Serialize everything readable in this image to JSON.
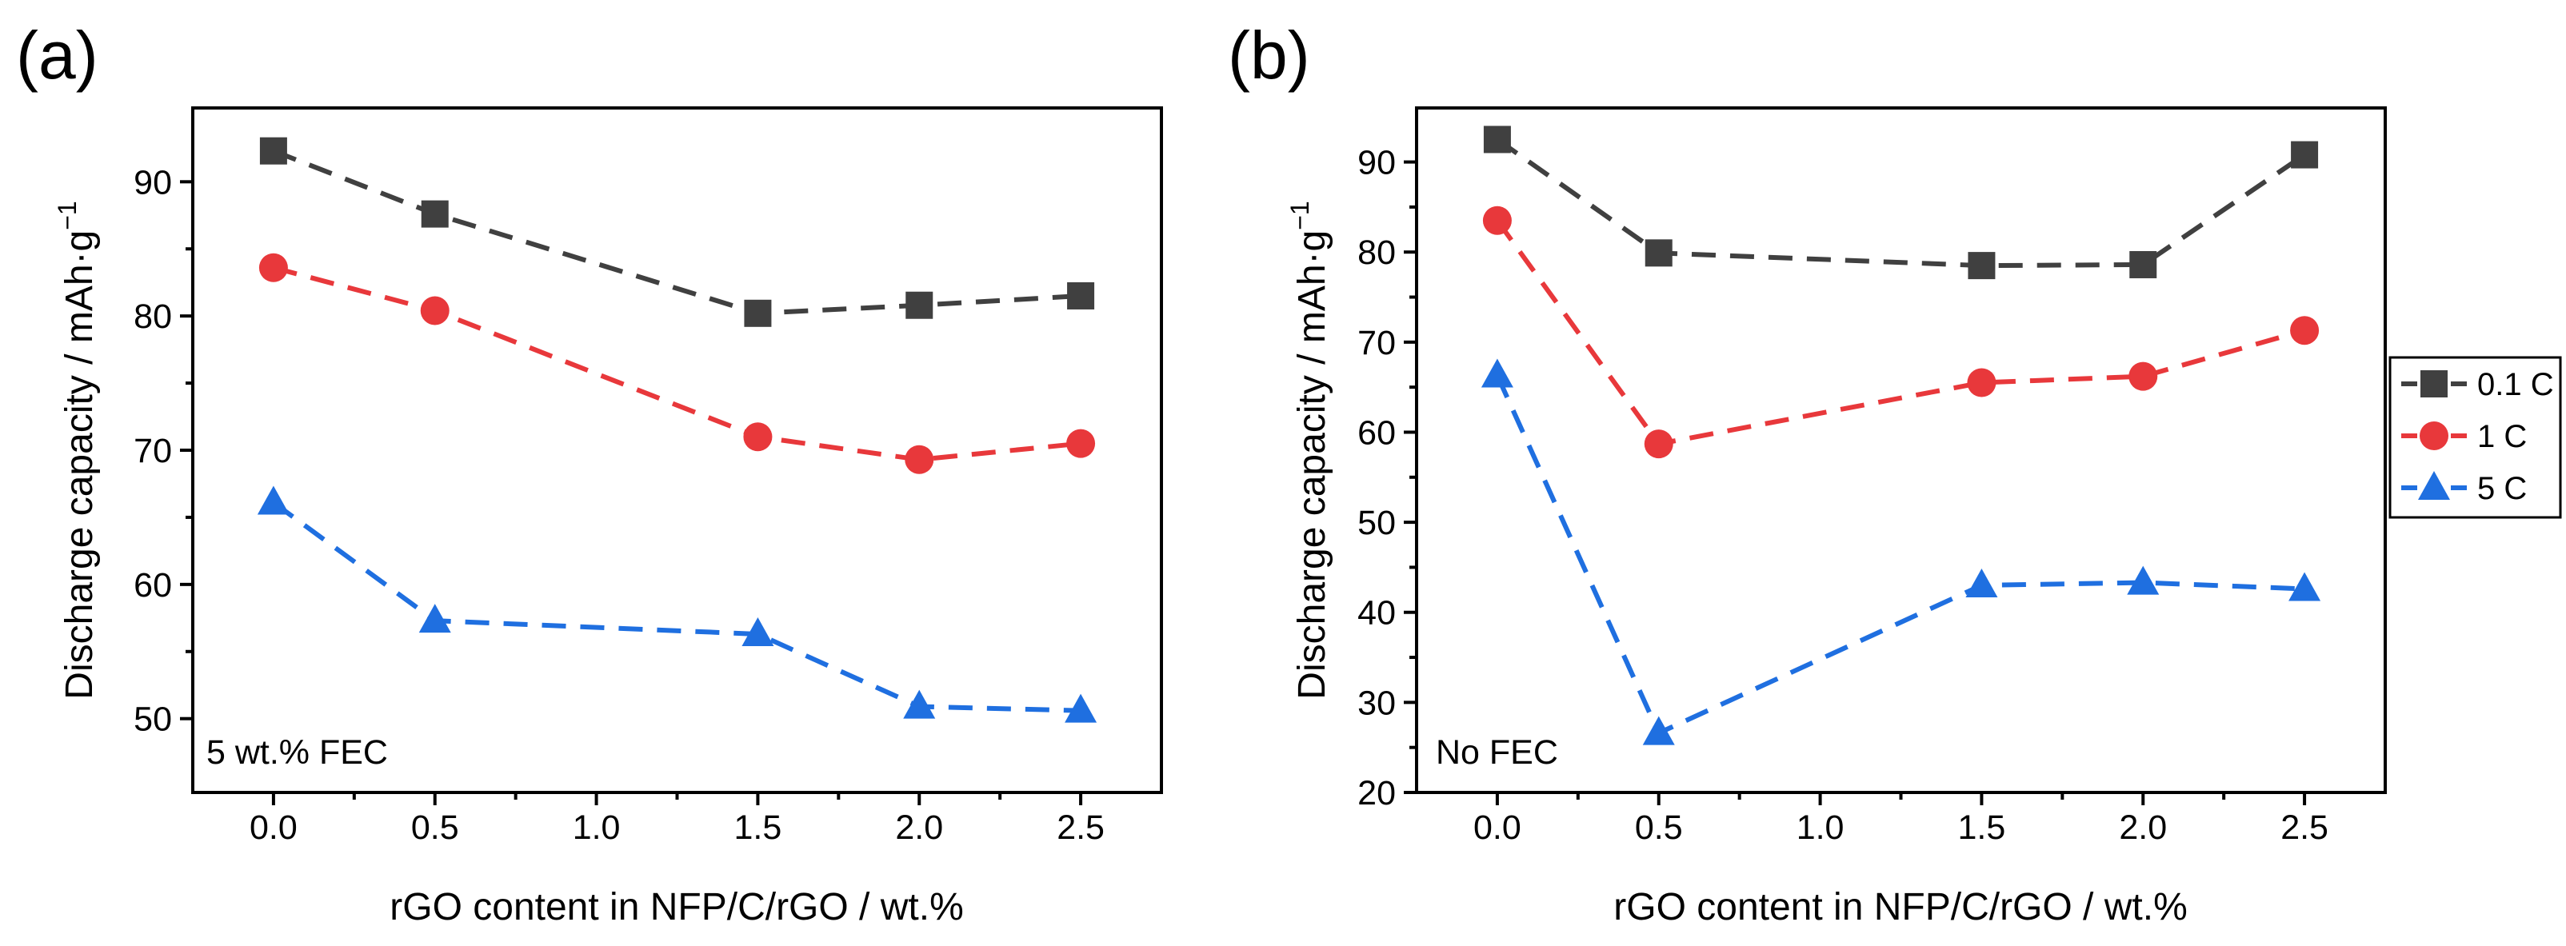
{
  "chart_data": [
    {
      "type": "line",
      "panel_label": "(a)",
      "annotation": "5 wt.% FEC",
      "xlabel": "rGO content in NFP/C/rGO / wt.%",
      "ylabel": "Discharge capacity / mAh·g",
      "ylabel_superscript": "−1",
      "xlim": [
        -0.25,
        2.75
      ],
      "ylim": [
        44.5,
        95.5
      ],
      "x_ticks": [
        0.0,
        0.5,
        1.0,
        1.5,
        2.0,
        2.5
      ],
      "x_tick_labels": [
        "0.0",
        "0.5",
        "1.0",
        "1.5",
        "2.0",
        "2.5"
      ],
      "y_ticks": [
        50,
        60,
        70,
        80,
        90
      ],
      "y_tick_labels": [
        "50",
        "60",
        "70",
        "80",
        "90"
      ],
      "x": [
        0.0,
        0.5,
        1.5,
        2.0,
        2.5
      ],
      "series": [
        {
          "name": "0.1 C",
          "marker": "square",
          "color": "#404040",
          "values": [
            92.3,
            87.6,
            80.2,
            80.8,
            81.5
          ]
        },
        {
          "name": "1 C",
          "marker": "circle",
          "color": "#e8383b",
          "values": [
            83.6,
            80.4,
            71.0,
            69.3,
            70.5
          ]
        },
        {
          "name": "5 C",
          "marker": "triangle",
          "color": "#1f6fe0",
          "values": [
            66.1,
            57.3,
            56.3,
            50.9,
            50.6
          ]
        }
      ]
    },
    {
      "type": "line",
      "panel_label": "(b)",
      "annotation": "No FEC",
      "xlabel": "rGO content in NFP/C/rGO / wt.%",
      "ylabel": "Discharge capacity / mAh·g",
      "ylabel_superscript": "−1",
      "xlim": [
        -0.25,
        2.75
      ],
      "ylim": [
        20.0,
        96.0
      ],
      "x_ticks": [
        0.0,
        0.5,
        1.0,
        1.5,
        2.0,
        2.5
      ],
      "x_tick_labels": [
        "0.0",
        "0.5",
        "1.0",
        "1.5",
        "2.0",
        "2.5"
      ],
      "y_ticks": [
        20,
        30,
        40,
        50,
        60,
        70,
        80,
        90
      ],
      "y_tick_labels": [
        "20",
        "30",
        "40",
        "50",
        "60",
        "70",
        "80",
        "90"
      ],
      "x": [
        0.0,
        0.5,
        1.5,
        2.0,
        2.5
      ],
      "legend_position": "right-outside",
      "series": [
        {
          "name": "0.1 C",
          "marker": "square",
          "color": "#404040",
          "values": [
            92.5,
            79.9,
            78.5,
            78.6,
            90.8
          ]
        },
        {
          "name": "1 C",
          "marker": "circle",
          "color": "#e8383b",
          "values": [
            83.5,
            58.7,
            65.5,
            66.2,
            71.3
          ]
        },
        {
          "name": "5 C",
          "marker": "triangle",
          "color": "#1f6fe0",
          "values": [
            66.3,
            26.6,
            43.0,
            43.3,
            42.6
          ]
        }
      ]
    }
  ]
}
